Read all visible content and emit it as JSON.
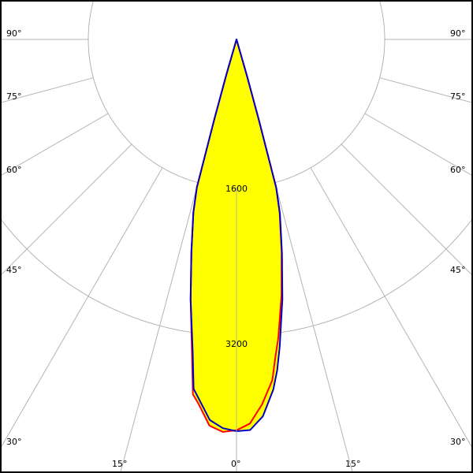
{
  "chart_data": {
    "type": "polar-line",
    "radial_ticks": [
      1600,
      3200
    ],
    "radial_tick_labels": [
      "1600",
      "3200"
    ],
    "angle_tick_labels_left": [
      "90°",
      "75°",
      "60°",
      "45°",
      "30°",
      "15°"
    ],
    "angle_tick_labels_right": [
      "90°",
      "75°",
      "60°",
      "45°",
      "30°",
      "15°"
    ],
    "angle_zero_label": "0°",
    "angle_step_deg": 15,
    "fill_color": "#ffff00",
    "grid_color": "#b4b4b4",
    "series": [
      {
        "color": "#ff0000",
        "angles": [
          -17,
          -16,
          -15.5,
          -15,
          -14,
          -12,
          -10,
          -8,
          -7,
          -6,
          -4,
          -2,
          0,
          2,
          4,
          6,
          7,
          8,
          10,
          12,
          14,
          15,
          15.5,
          16,
          17
        ],
        "values": [
          0,
          400,
          900,
          1655,
          1925,
          2340,
          2850,
          3450,
          3860,
          3950,
          4180,
          4240,
          4220,
          4150,
          3950,
          3700,
          3450,
          3250,
          2800,
          2340,
          1925,
          1655,
          900,
          400,
          0
        ]
      },
      {
        "color": "#0000c8",
        "angles": [
          -17,
          -16,
          -15.5,
          -15,
          -14,
          -12,
          -10,
          -8,
          -7,
          -6,
          -4,
          -2,
          0,
          2,
          4,
          6,
          7,
          8,
          10,
          12,
          14,
          15,
          15.5,
          16,
          17
        ],
        "values": [
          0,
          400,
          900,
          1655,
          1925,
          2340,
          2850,
          3400,
          3800,
          3900,
          4120,
          4200,
          4230,
          4220,
          4080,
          3800,
          3600,
          3350,
          2850,
          2360,
          1940,
          1665,
          900,
          400,
          0
        ]
      }
    ]
  }
}
